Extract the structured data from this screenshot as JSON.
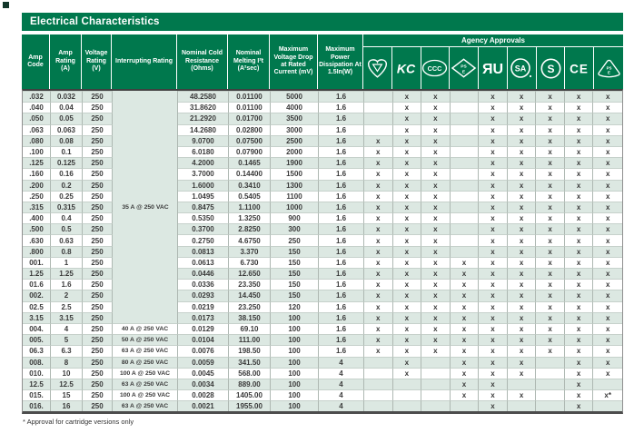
{
  "page": {
    "title": "Electrical Characteristics",
    "footnote": "* Approval for cartridge versions only"
  },
  "colors": {
    "brand_green": "#00784d",
    "row_alt_green": "#dce8e2",
    "body_text": "#3a3a3a",
    "header_text": "#ffffff"
  },
  "table": {
    "headers": {
      "amp_code": "Amp Code",
      "amp_rating": "Amp Rating (A)",
      "voltage_rating": "Voltage Rating (V)",
      "interrupting_rating": "Interrupting Rating",
      "cold_resistance": "Nominal Cold Resistance (Ohms)",
      "melting": "Nominal Melting I²t (A²sec)",
      "voltage_drop": "Maximum Voltage Drop at Rated Current (mV)",
      "power_dissipation": "Maximum Power Dissipation At 1.5In(W)",
      "agency_approvals": "Agency Approvals"
    },
    "agency_columns": [
      {
        "name": "vde-icon",
        "shape": "heart",
        "text": "VDE"
      },
      {
        "name": "kc-icon",
        "shape": "kc",
        "text": "KC"
      },
      {
        "name": "ccc-icon",
        "shape": "ccc",
        "text": "CCC"
      },
      {
        "name": "pse-diamond-icon",
        "shape": "diamond",
        "text": "PS E"
      },
      {
        "name": "ul-recognized-icon",
        "shape": "ul",
        "text": "ЯU"
      },
      {
        "name": "csa-icon",
        "shape": "circle-sa",
        "text": "SA"
      },
      {
        "name": "s-mark-icon",
        "shape": "circle-s",
        "text": "S"
      },
      {
        "name": "ce-icon",
        "shape": "ce",
        "text": "CE"
      },
      {
        "name": "pse-triangle-icon",
        "shape": "triangle",
        "text": "PS E"
      }
    ],
    "interrupting_merged": {
      "label": "35 A @ 250 VAC",
      "applies_to_rows": "1-21"
    },
    "rows": [
      {
        "amp_code": ".032",
        "amp_rating": "0.032",
        "voltage_rating": "250",
        "interrupting": null,
        "cold_resistance": "48.2580",
        "melting": "0.01100",
        "voltage_drop": "5000",
        "power": "1.6",
        "approvals": [
          "",
          "x",
          "x",
          "",
          "x",
          "x",
          "x",
          "x",
          "x"
        ]
      },
      {
        "amp_code": ".040",
        "amp_rating": "0.04",
        "voltage_rating": "250",
        "interrupting": null,
        "cold_resistance": "31.8620",
        "melting": "0.01100",
        "voltage_drop": "4000",
        "power": "1.6",
        "approvals": [
          "",
          "x",
          "x",
          "",
          "x",
          "x",
          "x",
          "x",
          "x"
        ]
      },
      {
        "amp_code": ".050",
        "amp_rating": "0.05",
        "voltage_rating": "250",
        "interrupting": null,
        "cold_resistance": "21.2920",
        "melting": "0.01700",
        "voltage_drop": "3500",
        "power": "1.6",
        "approvals": [
          "",
          "x",
          "x",
          "",
          "x",
          "x",
          "x",
          "x",
          "x"
        ]
      },
      {
        "amp_code": ".063",
        "amp_rating": "0.063",
        "voltage_rating": "250",
        "interrupting": null,
        "cold_resistance": "14.2680",
        "melting": "0.02800",
        "voltage_drop": "3000",
        "power": "1.6",
        "approvals": [
          "",
          "x",
          "x",
          "",
          "x",
          "x",
          "x",
          "x",
          "x"
        ]
      },
      {
        "amp_code": ".080",
        "amp_rating": "0.08",
        "voltage_rating": "250",
        "interrupting": null,
        "cold_resistance": "9.0700",
        "melting": "0.07500",
        "voltage_drop": "2500",
        "power": "1.6",
        "approvals": [
          "x",
          "x",
          "x",
          "",
          "x",
          "x",
          "x",
          "x",
          "x"
        ]
      },
      {
        "amp_code": ".100",
        "amp_rating": "0.1",
        "voltage_rating": "250",
        "interrupting": null,
        "cold_resistance": "6.0180",
        "melting": "0.07900",
        "voltage_drop": "2000",
        "power": "1.6",
        "approvals": [
          "x",
          "x",
          "x",
          "",
          "x",
          "x",
          "x",
          "x",
          "x"
        ]
      },
      {
        "amp_code": ".125",
        "amp_rating": "0.125",
        "voltage_rating": "250",
        "interrupting": null,
        "cold_resistance": "4.2000",
        "melting": "0.1465",
        "voltage_drop": "1900",
        "power": "1.6",
        "approvals": [
          "x",
          "x",
          "x",
          "",
          "x",
          "x",
          "x",
          "x",
          "x"
        ]
      },
      {
        "amp_code": ".160",
        "amp_rating": "0.16",
        "voltage_rating": "250",
        "interrupting": null,
        "cold_resistance": "3.7000",
        "melting": "0.14400",
        "voltage_drop": "1500",
        "power": "1.6",
        "approvals": [
          "x",
          "x",
          "x",
          "",
          "x",
          "x",
          "x",
          "x",
          "x"
        ]
      },
      {
        "amp_code": ".200",
        "amp_rating": "0.2",
        "voltage_rating": "250",
        "interrupting": null,
        "cold_resistance": "1.6000",
        "melting": "0.3410",
        "voltage_drop": "1300",
        "power": "1.6",
        "approvals": [
          "x",
          "x",
          "x",
          "",
          "x",
          "x",
          "x",
          "x",
          "x"
        ]
      },
      {
        "amp_code": ".250",
        "amp_rating": "0.25",
        "voltage_rating": "250",
        "interrupting": null,
        "cold_resistance": "1.0495",
        "melting": "0.5405",
        "voltage_drop": "1100",
        "power": "1.6",
        "approvals": [
          "x",
          "x",
          "x",
          "",
          "x",
          "x",
          "x",
          "x",
          "x"
        ]
      },
      {
        "amp_code": ".315",
        "amp_rating": "0.315",
        "voltage_rating": "250",
        "interrupting": null,
        "cold_resistance": "0.8475",
        "melting": "1.1100",
        "voltage_drop": "1000",
        "power": "1.6",
        "approvals": [
          "x",
          "x",
          "x",
          "",
          "x",
          "x",
          "x",
          "x",
          "x"
        ]
      },
      {
        "amp_code": ".400",
        "amp_rating": "0.4",
        "voltage_rating": "250",
        "interrupting": null,
        "cold_resistance": "0.5350",
        "melting": "1.3250",
        "voltage_drop": "900",
        "power": "1.6",
        "approvals": [
          "x",
          "x",
          "x",
          "",
          "x",
          "x",
          "x",
          "x",
          "x"
        ]
      },
      {
        "amp_code": ".500",
        "amp_rating": "0.5",
        "voltage_rating": "250",
        "interrupting": null,
        "cold_resistance": "0.3700",
        "melting": "2.8250",
        "voltage_drop": "300",
        "power": "1.6",
        "approvals": [
          "x",
          "x",
          "x",
          "",
          "x",
          "x",
          "x",
          "x",
          "x"
        ]
      },
      {
        "amp_code": ".630",
        "amp_rating": "0.63",
        "voltage_rating": "250",
        "interrupting": null,
        "cold_resistance": "0.2750",
        "melting": "4.6750",
        "voltage_drop": "250",
        "power": "1.6",
        "approvals": [
          "x",
          "x",
          "x",
          "",
          "x",
          "x",
          "x",
          "x",
          "x"
        ]
      },
      {
        "amp_code": ".800",
        "amp_rating": "0.8",
        "voltage_rating": "250",
        "interrupting": null,
        "cold_resistance": "0.0813",
        "melting": "3.370",
        "voltage_drop": "150",
        "power": "1.6",
        "approvals": [
          "x",
          "x",
          "x",
          "",
          "x",
          "x",
          "x",
          "x",
          "x"
        ]
      },
      {
        "amp_code": "001.",
        "amp_rating": "1",
        "voltage_rating": "250",
        "interrupting": null,
        "cold_resistance": "0.0613",
        "melting": "6.730",
        "voltage_drop": "150",
        "power": "1.6",
        "approvals": [
          "x",
          "x",
          "x",
          "x",
          "x",
          "x",
          "x",
          "x",
          "x"
        ]
      },
      {
        "amp_code": "1.25",
        "amp_rating": "1.25",
        "voltage_rating": "250",
        "interrupting": null,
        "cold_resistance": "0.0446",
        "melting": "12.650",
        "voltage_drop": "150",
        "power": "1.6",
        "approvals": [
          "x",
          "x",
          "x",
          "x",
          "x",
          "x",
          "x",
          "x",
          "x"
        ]
      },
      {
        "amp_code": "01.6",
        "amp_rating": "1.6",
        "voltage_rating": "250",
        "interrupting": null,
        "cold_resistance": "0.0336",
        "melting": "23.350",
        "voltage_drop": "150",
        "power": "1.6",
        "approvals": [
          "x",
          "x",
          "x",
          "x",
          "x",
          "x",
          "x",
          "x",
          "x"
        ]
      },
      {
        "amp_code": "002.",
        "amp_rating": "2",
        "voltage_rating": "250",
        "interrupting": null,
        "cold_resistance": "0.0293",
        "melting": "14.450",
        "voltage_drop": "150",
        "power": "1.6",
        "approvals": [
          "x",
          "x",
          "x",
          "x",
          "x",
          "x",
          "x",
          "x",
          "x"
        ]
      },
      {
        "amp_code": "02.5",
        "amp_rating": "2.5",
        "voltage_rating": "250",
        "interrupting": null,
        "cold_resistance": "0.0219",
        "melting": "23.250",
        "voltage_drop": "120",
        "power": "1.6",
        "approvals": [
          "x",
          "x",
          "x",
          "x",
          "x",
          "x",
          "x",
          "x",
          "x"
        ]
      },
      {
        "amp_code": "3.15",
        "amp_rating": "3.15",
        "voltage_rating": "250",
        "interrupting": null,
        "cold_resistance": "0.0173",
        "melting": "38.150",
        "voltage_drop": "100",
        "power": "1.6",
        "approvals": [
          "x",
          "x",
          "x",
          "x",
          "x",
          "x",
          "x",
          "x",
          "x"
        ]
      },
      {
        "amp_code": "004.",
        "amp_rating": "4",
        "voltage_rating": "250",
        "interrupting": "40 A @ 250 VAC",
        "cold_resistance": "0.0129",
        "melting": "69.10",
        "voltage_drop": "100",
        "power": "1.6",
        "approvals": [
          "x",
          "x",
          "x",
          "x",
          "x",
          "x",
          "x",
          "x",
          "x"
        ]
      },
      {
        "amp_code": "005.",
        "amp_rating": "5",
        "voltage_rating": "250",
        "interrupting": "50 A @ 250 VAC",
        "cold_resistance": "0.0104",
        "melting": "111.00",
        "voltage_drop": "100",
        "power": "1.6",
        "approvals": [
          "x",
          "x",
          "x",
          "x",
          "x",
          "x",
          "x",
          "x",
          "x"
        ]
      },
      {
        "amp_code": "06.3",
        "amp_rating": "6.3",
        "voltage_rating": "250",
        "interrupting": "63 A @ 250 VAC",
        "cold_resistance": "0.0076",
        "melting": "198.50",
        "voltage_drop": "100",
        "power": "1.6",
        "approvals": [
          "x",
          "x",
          "x",
          "x",
          "x",
          "x",
          "x",
          "x",
          "x"
        ]
      },
      {
        "amp_code": "008.",
        "amp_rating": "8",
        "voltage_rating": "250",
        "interrupting": "80 A @ 250 VAC",
        "cold_resistance": "0.0059",
        "melting": "341.50",
        "voltage_drop": "100",
        "power": "4",
        "approvals": [
          "",
          "x",
          "",
          "x",
          "x",
          "x",
          "",
          "x",
          "x"
        ]
      },
      {
        "amp_code": "010.",
        "amp_rating": "10",
        "voltage_rating": "250",
        "interrupting": "100 A @ 250 VAC",
        "cold_resistance": "0.0045",
        "melting": "568.00",
        "voltage_drop": "100",
        "power": "4",
        "approvals": [
          "",
          "x",
          "",
          "x",
          "x",
          "x",
          "",
          "x",
          "x"
        ]
      },
      {
        "amp_code": "12.5",
        "amp_rating": "12.5",
        "voltage_rating": "250",
        "interrupting": "63 A @ 250 VAC",
        "cold_resistance": "0.0034",
        "melting": "889.00",
        "voltage_drop": "100",
        "power": "4",
        "approvals": [
          "",
          "",
          "",
          "x",
          "x",
          "",
          "",
          "x",
          ""
        ]
      },
      {
        "amp_code": "015.",
        "amp_rating": "15",
        "voltage_rating": "250",
        "interrupting": "100 A @ 250 VAC",
        "cold_resistance": "0.0028",
        "melting": "1405.00",
        "voltage_drop": "100",
        "power": "4",
        "approvals": [
          "",
          "",
          "",
          "x",
          "x",
          "x",
          "",
          "x",
          "x*"
        ]
      },
      {
        "amp_code": "016.",
        "amp_rating": "16",
        "voltage_rating": "250",
        "interrupting": "63 A @ 250 VAC",
        "cold_resistance": "0.0021",
        "melting": "1955.00",
        "voltage_drop": "100",
        "power": "4",
        "approvals": [
          "",
          "",
          "",
          "",
          "x",
          "",
          "",
          "x",
          ""
        ]
      }
    ]
  }
}
